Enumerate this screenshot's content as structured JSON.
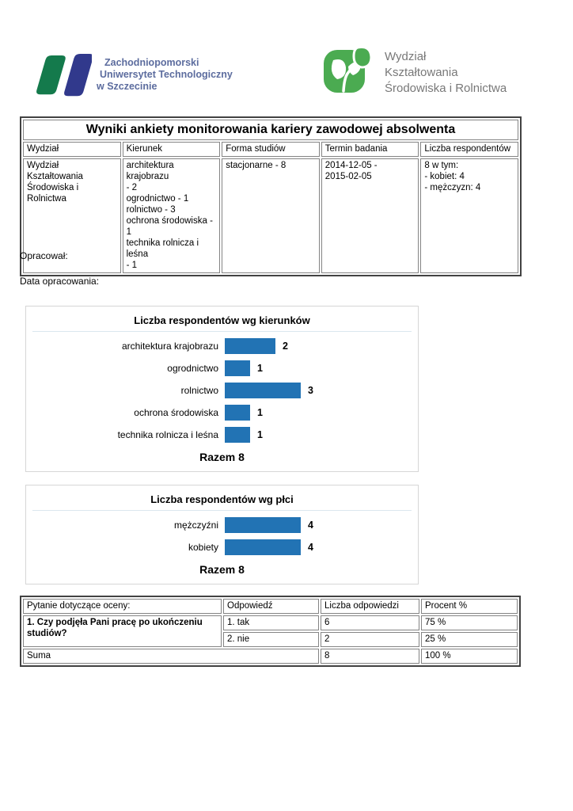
{
  "header": {
    "left_logo": {
      "lines": [
        "Zachodniopomorski",
        "Uniwersytet Technologiczny",
        "w Szczecinie"
      ],
      "text_color": "#5c6c9e",
      "green": "#147a4c",
      "blue": "#31398c"
    },
    "right_logo": {
      "lines": [
        "Wydział",
        "Kształtowania",
        "Środowiska i Rolnictwa"
      ],
      "text_color": "#787878",
      "green": "#4bab51"
    }
  },
  "report": {
    "title": "Wyniki ankiety monitorowania kariery zawodowej absolwenta",
    "info_table": {
      "headers": [
        "Wydział",
        "Kierunek",
        "Forma studiów",
        "Termin badania",
        "Liczba respondentów"
      ],
      "row": {
        "wydzial": "Wydział Kształtowania\nŚrodowiska i Rolnictwa",
        "kierunek": "architektura krajobrazu\n- 2\nogrodnictwo - 1\nrolnictwo - 3\nochrona środowiska - 1\ntechnika rolnicza i leśna\n- 1",
        "forma": "stacjonarne - 8",
        "termin": "2014-12-05 -\n2015-02-05",
        "liczba": "8 w tym:\n- kobiet: 4\n- mężczyzn: 4"
      }
    },
    "prepared_by_label": "Opracował:",
    "prepared_date_label": "Data opracowania:"
  },
  "chart_data": [
    {
      "type": "bar",
      "orientation": "horizontal",
      "title": "Liczba respondentów wg kierunków",
      "categories": [
        "architektura krajobrazu",
        "ogrodnictwo",
        "rolnictwo",
        "ochrona środowiska",
        "technika rolnicza i leśna"
      ],
      "values": [
        2,
        1,
        3,
        1,
        1
      ],
      "footer": "Razem 8",
      "bar_color": "#2273b4",
      "xlim": [
        0,
        3
      ],
      "grid": false,
      "legend": false
    },
    {
      "type": "bar",
      "orientation": "horizontal",
      "title": "Liczba respondentów wg płci",
      "categories": [
        "mężczyźni",
        "kobiety"
      ],
      "values": [
        4,
        4
      ],
      "footer": "Razem 8",
      "bar_color": "#2273b4",
      "xlim": [
        0,
        4
      ],
      "grid": false,
      "legend": false
    }
  ],
  "qa_table": {
    "headers": [
      "Pytanie dotyczące oceny:",
      "Odpowiedź",
      "Liczba odpowiedzi",
      "Procent %"
    ],
    "question": "1. Czy podjęła Pani pracę po ukończeniu studiów?",
    "answers": [
      {
        "label": "1. tak",
        "count": "6",
        "percent": "75 %"
      },
      {
        "label": "2. nie",
        "count": "2",
        "percent": "25 %"
      }
    ],
    "sum_row": {
      "label": "Suma",
      "count": "8",
      "percent": "100 %"
    }
  }
}
